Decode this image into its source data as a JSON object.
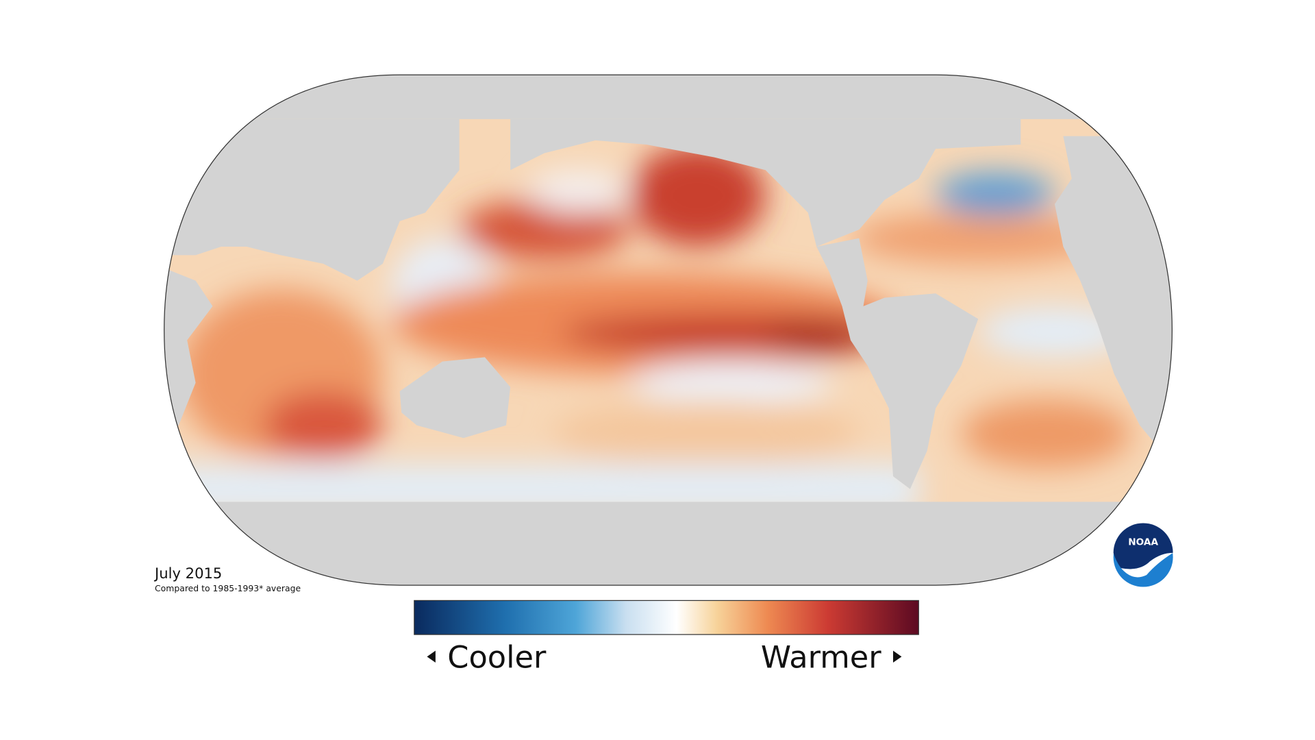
{
  "map": {
    "date": "July 2015",
    "baseline": "Compared to 1985-1993* average"
  },
  "legend": {
    "low": "Cooler",
    "high": "Warmer"
  },
  "logo": "NOAA"
}
